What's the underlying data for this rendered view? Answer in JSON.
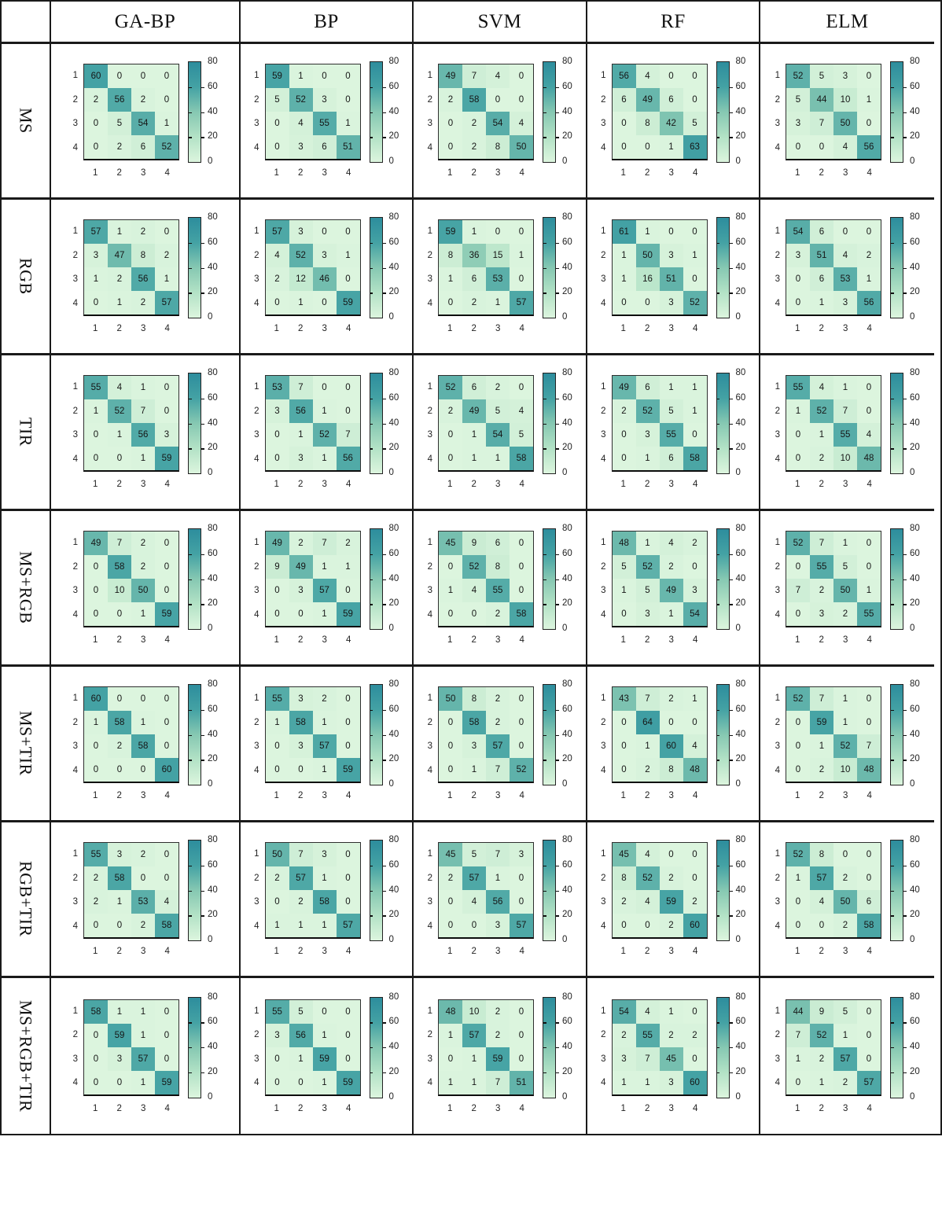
{
  "figure": {
    "column_headers": [
      "GA-BP",
      "BP",
      "SVM",
      "RF",
      "ELM"
    ],
    "row_headers": [
      "MS",
      "RGB",
      "TIR",
      "MS+RGB",
      "MS+TIR",
      "RGB+TIR",
      "MS+RGB+TIR"
    ]
  },
  "chart_data": {
    "type": "heatmap",
    "columns": [
      "GA-BP",
      "BP",
      "SVM",
      "RF",
      "ELM"
    ],
    "rows": [
      "MS",
      "RGB",
      "TIR",
      "MS+RGB",
      "MS+TIR",
      "RGB+TIR",
      "MS+RGB+TIR"
    ],
    "x_ticks": [
      "1",
      "2",
      "3",
      "4"
    ],
    "y_ticks": [
      "1",
      "2",
      "3",
      "4"
    ],
    "colorbar": {
      "min": 0,
      "max": 80,
      "tick_labels": [
        "80",
        "60",
        "40",
        "20",
        "0"
      ]
    },
    "colormap_stops": [
      {
        "value": 0,
        "color": "#dcf5de"
      },
      {
        "value": 20,
        "color": "#b3e2c6"
      },
      {
        "value": 40,
        "color": "#86c8b2"
      },
      {
        "value": 60,
        "color": "#44a2a4"
      },
      {
        "value": 80,
        "color": "#2d8d9d"
      }
    ],
    "matrices": {
      "MS": {
        "GA-BP": [
          [
            60,
            0,
            0,
            0
          ],
          [
            2,
            56,
            2,
            0
          ],
          [
            0,
            5,
            54,
            1
          ],
          [
            0,
            2,
            6,
            52
          ]
        ],
        "BP": [
          [
            59,
            1,
            0,
            0
          ],
          [
            5,
            52,
            3,
            0
          ],
          [
            0,
            4,
            55,
            1
          ],
          [
            0,
            3,
            6,
            51
          ]
        ],
        "SVM": [
          [
            49,
            7,
            4,
            0
          ],
          [
            2,
            58,
            0,
            0
          ],
          [
            0,
            2,
            54,
            4
          ],
          [
            0,
            2,
            8,
            50
          ]
        ],
        "RF": [
          [
            56,
            4,
            0,
            0
          ],
          [
            6,
            49,
            6,
            0
          ],
          [
            0,
            8,
            42,
            5
          ],
          [
            0,
            0,
            1,
            63
          ]
        ],
        "ELM": [
          [
            52,
            5,
            3,
            0
          ],
          [
            5,
            44,
            10,
            1
          ],
          [
            3,
            7,
            50,
            0
          ],
          [
            0,
            0,
            4,
            56
          ]
        ]
      },
      "RGB": {
        "GA-BP": [
          [
            57,
            1,
            2,
            0
          ],
          [
            3,
            47,
            8,
            2
          ],
          [
            1,
            2,
            56,
            1
          ],
          [
            0,
            1,
            2,
            57
          ]
        ],
        "BP": [
          [
            57,
            3,
            0,
            0
          ],
          [
            4,
            52,
            3,
            1
          ],
          [
            2,
            12,
            46,
            0
          ],
          [
            0,
            1,
            0,
            59
          ]
        ],
        "SVM": [
          [
            59,
            1,
            0,
            0
          ],
          [
            8,
            36,
            15,
            1
          ],
          [
            1,
            6,
            53,
            0
          ],
          [
            0,
            2,
            1,
            57
          ]
        ],
        "RF": [
          [
            61,
            1,
            0,
            0
          ],
          [
            1,
            50,
            3,
            1
          ],
          [
            1,
            16,
            51,
            0
          ],
          [
            0,
            0,
            3,
            52
          ]
        ],
        "ELM": [
          [
            54,
            6,
            0,
            0
          ],
          [
            3,
            51,
            4,
            2
          ],
          [
            0,
            6,
            53,
            1
          ],
          [
            0,
            1,
            3,
            56
          ]
        ]
      },
      "TIR": {
        "GA-BP": [
          [
            55,
            4,
            1,
            0
          ],
          [
            1,
            52,
            7,
            0
          ],
          [
            0,
            1,
            56,
            3
          ],
          [
            0,
            0,
            1,
            59
          ]
        ],
        "BP": [
          [
            53,
            7,
            0,
            0
          ],
          [
            3,
            56,
            1,
            0
          ],
          [
            0,
            1,
            52,
            7
          ],
          [
            0,
            3,
            1,
            56
          ]
        ],
        "SVM": [
          [
            52,
            6,
            2,
            0
          ],
          [
            2,
            49,
            5,
            4
          ],
          [
            0,
            1,
            54,
            5
          ],
          [
            0,
            1,
            1,
            58
          ]
        ],
        "RF": [
          [
            49,
            6,
            1,
            1
          ],
          [
            2,
            52,
            5,
            1
          ],
          [
            0,
            3,
            55,
            0
          ],
          [
            0,
            1,
            6,
            58
          ]
        ],
        "ELM": [
          [
            55,
            4,
            1,
            0
          ],
          [
            1,
            52,
            7,
            0
          ],
          [
            0,
            1,
            55,
            4
          ],
          [
            0,
            2,
            10,
            48
          ]
        ]
      },
      "MS+RGB": {
        "GA-BP": [
          [
            49,
            7,
            2,
            0
          ],
          [
            0,
            58,
            2,
            0
          ],
          [
            0,
            10,
            50,
            0
          ],
          [
            0,
            0,
            1,
            59
          ]
        ],
        "BP": [
          [
            49,
            2,
            7,
            2
          ],
          [
            9,
            49,
            1,
            1
          ],
          [
            0,
            3,
            57,
            0
          ],
          [
            0,
            0,
            1,
            59
          ]
        ],
        "SVM": [
          [
            45,
            9,
            6,
            0
          ],
          [
            0,
            52,
            8,
            0
          ],
          [
            1,
            4,
            55,
            0
          ],
          [
            0,
            0,
            2,
            58
          ]
        ],
        "RF": [
          [
            48,
            1,
            4,
            2
          ],
          [
            5,
            52,
            2,
            0
          ],
          [
            1,
            5,
            49,
            3
          ],
          [
            0,
            3,
            1,
            54
          ]
        ],
        "ELM": [
          [
            52,
            7,
            1,
            0
          ],
          [
            0,
            55,
            5,
            0
          ],
          [
            7,
            2,
            50,
            1
          ],
          [
            0,
            3,
            2,
            55
          ]
        ]
      },
      "MS+TIR": {
        "GA-BP": [
          [
            60,
            0,
            0,
            0
          ],
          [
            1,
            58,
            1,
            0
          ],
          [
            0,
            2,
            58,
            0
          ],
          [
            0,
            0,
            0,
            60
          ]
        ],
        "BP": [
          [
            55,
            3,
            2,
            0
          ],
          [
            1,
            58,
            1,
            0
          ],
          [
            0,
            3,
            57,
            0
          ],
          [
            0,
            0,
            1,
            59
          ]
        ],
        "SVM": [
          [
            50,
            8,
            2,
            0
          ],
          [
            0,
            58,
            2,
            0
          ],
          [
            0,
            3,
            57,
            0
          ],
          [
            0,
            1,
            7,
            52
          ]
        ],
        "RF": [
          [
            43,
            7,
            2,
            1
          ],
          [
            0,
            64,
            0,
            0
          ],
          [
            0,
            1,
            60,
            4
          ],
          [
            0,
            2,
            8,
            48
          ]
        ],
        "ELM": [
          [
            52,
            7,
            1,
            0
          ],
          [
            0,
            59,
            1,
            0
          ],
          [
            0,
            1,
            52,
            7
          ],
          [
            0,
            2,
            10,
            48
          ]
        ]
      },
      "RGB+TIR": {
        "GA-BP": [
          [
            55,
            3,
            2,
            0
          ],
          [
            2,
            58,
            0,
            0
          ],
          [
            2,
            1,
            53,
            4
          ],
          [
            0,
            0,
            2,
            58
          ]
        ],
        "BP": [
          [
            50,
            7,
            3,
            0
          ],
          [
            2,
            57,
            1,
            0
          ],
          [
            0,
            2,
            58,
            0
          ],
          [
            1,
            1,
            1,
            57
          ]
        ],
        "SVM": [
          [
            45,
            5,
            7,
            3
          ],
          [
            2,
            57,
            1,
            0
          ],
          [
            0,
            4,
            56,
            0
          ],
          [
            0,
            0,
            3,
            57
          ]
        ],
        "RF": [
          [
            45,
            4,
            0,
            0
          ],
          [
            8,
            52,
            2,
            0
          ],
          [
            2,
            4,
            59,
            2
          ],
          [
            0,
            0,
            2,
            60
          ]
        ],
        "ELM": [
          [
            52,
            8,
            0,
            0
          ],
          [
            1,
            57,
            2,
            0
          ],
          [
            0,
            4,
            50,
            6
          ],
          [
            0,
            0,
            2,
            58
          ]
        ]
      },
      "MS+RGB+TIR": {
        "GA-BP": [
          [
            58,
            1,
            1,
            0
          ],
          [
            0,
            59,
            1,
            0
          ],
          [
            0,
            3,
            57,
            0
          ],
          [
            0,
            0,
            1,
            59
          ]
        ],
        "BP": [
          [
            55,
            5,
            0,
            0
          ],
          [
            3,
            56,
            1,
            0
          ],
          [
            0,
            1,
            59,
            0
          ],
          [
            0,
            0,
            1,
            59
          ]
        ],
        "SVM": [
          [
            48,
            10,
            2,
            0
          ],
          [
            1,
            57,
            2,
            0
          ],
          [
            0,
            1,
            59,
            0
          ],
          [
            1,
            1,
            7,
            51
          ]
        ],
        "RF": [
          [
            54,
            4,
            1,
            0
          ],
          [
            2,
            55,
            2,
            2
          ],
          [
            3,
            7,
            45,
            0
          ],
          [
            1,
            1,
            3,
            60
          ]
        ],
        "ELM": [
          [
            44,
            9,
            5,
            0
          ],
          [
            7,
            52,
            1,
            0
          ],
          [
            1,
            2,
            57,
            0
          ],
          [
            0,
            1,
            2,
            57
          ]
        ]
      }
    }
  }
}
